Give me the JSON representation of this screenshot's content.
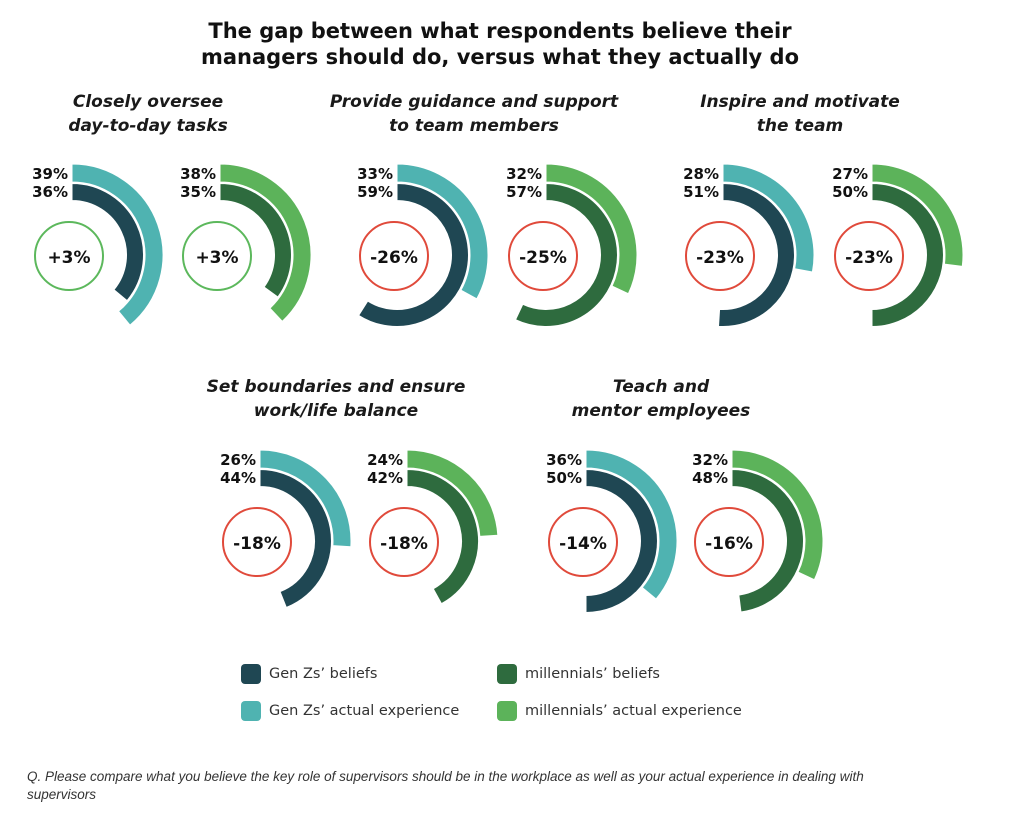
{
  "chart_data": {
    "type": "radial-bar",
    "title": "The gap between what respondents believe their managers should do, versus what they actually do",
    "title_lines": [
      "The gap between what respondents believe their",
      "managers should do, versus what they actually do"
    ],
    "colors": {
      "genz_beliefs": "#1f4753",
      "genz_actual": "#4fb3b1",
      "millennial_beliefs": "#2e6b3e",
      "millennial_actual": "#5cb35a",
      "gap_positive": "#5cb85c",
      "gap_negative": "#e04a3b"
    },
    "legend": [
      {
        "key": "genz_beliefs",
        "label": "Gen Zs’ beliefs"
      },
      {
        "key": "genz_actual",
        "label": "Gen Zs’ actual experience"
      },
      {
        "key": "millennial_beliefs",
        "label": "millennials’ beliefs"
      },
      {
        "key": "millennial_actual",
        "label": "millennials’ actual experience"
      }
    ],
    "groups": [
      {
        "title_lines": [
          "Closely oversee",
          "day-to-day tasks"
        ],
        "charts": [
          {
            "generation": "genz",
            "actual": 39,
            "beliefs": 36,
            "gap": "+3%"
          },
          {
            "generation": "millennial",
            "actual": 38,
            "beliefs": 35,
            "gap": "+3%"
          }
        ]
      },
      {
        "title_lines": [
          "Provide guidance and support",
          "to team members"
        ],
        "charts": [
          {
            "generation": "genz",
            "actual": 33,
            "beliefs": 59,
            "gap": "-26%"
          },
          {
            "generation": "millennial",
            "actual": 32,
            "beliefs": 57,
            "gap": "-25%"
          }
        ]
      },
      {
        "title_lines": [
          "Inspire and motivate",
          "the team"
        ],
        "charts": [
          {
            "generation": "genz",
            "actual": 28,
            "beliefs": 51,
            "gap": "-23%"
          },
          {
            "generation": "millennial",
            "actual": 27,
            "beliefs": 50,
            "gap": "-23%"
          }
        ]
      },
      {
        "title_lines": [
          "Set boundaries and ensure",
          "work/life balance"
        ],
        "charts": [
          {
            "generation": "genz",
            "actual": 26,
            "beliefs": 44,
            "gap": "-18%"
          },
          {
            "generation": "millennial",
            "actual": 24,
            "beliefs": 42,
            "gap": "-18%"
          }
        ]
      },
      {
        "title_lines": [
          "Teach and",
          "mentor employees"
        ],
        "charts": [
          {
            "generation": "genz",
            "actual": 36,
            "beliefs": 50,
            "gap": "-14%"
          },
          {
            "generation": "millennial",
            "actual": 32,
            "beliefs": 48,
            "gap": "-16%"
          }
        ]
      }
    ],
    "footnote": "Q. Please compare what you believe the key role of supervisors should be in the workplace as well as your actual experience in dealing with supervisors"
  }
}
